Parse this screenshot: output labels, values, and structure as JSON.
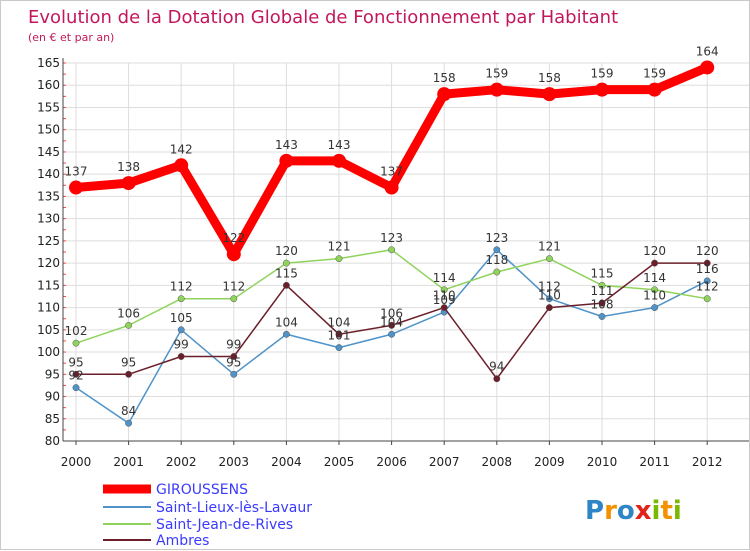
{
  "chart_data": {
    "type": "line",
    "title": "Evolution de la Dotation Globale de Fonctionnement par Habitant",
    "subtitle": "(en € et par an)",
    "xlabel": "",
    "ylabel": "",
    "categories": [
      "2000",
      "2001",
      "2002",
      "2003",
      "2004",
      "2005",
      "2006",
      "2007",
      "2008",
      "2009",
      "2010",
      "2011",
      "2012"
    ],
    "ylim": [
      80,
      165
    ],
    "yticks": [
      80,
      85,
      90,
      95,
      100,
      105,
      110,
      115,
      120,
      125,
      130,
      135,
      140,
      145,
      150,
      155,
      160,
      165
    ],
    "grid": true,
    "legend_position": "bottom-left",
    "series": [
      {
        "name": "GIROUSSENS",
        "color": "#ff0000",
        "values": [
          137,
          138,
          142,
          122,
          143,
          143,
          137,
          158,
          159,
          158,
          159,
          159,
          164
        ]
      },
      {
        "name": "Saint-Lieux-lès-Lavaur",
        "color": "#4f93c9",
        "values": [
          92,
          84,
          105,
          95,
          104,
          101,
          104,
          109,
          123,
          112,
          108,
          110,
          116
        ]
      },
      {
        "name": "Saint-Jean-de-Rives",
        "color": "#8fd35c",
        "values": [
          102,
          106,
          112,
          112,
          120,
          121,
          123,
          114,
          118,
          121,
          115,
          114,
          112
        ]
      },
      {
        "name": "Ambres",
        "color": "#6b1f2a",
        "values": [
          95,
          95,
          99,
          99,
          115,
          104,
          106,
          110,
          94,
          110,
          111,
          120,
          120
        ]
      }
    ],
    "data_labels": [
      {
        "series": 0,
        "values": [
          "137",
          "138",
          "142",
          "122",
          "143",
          "143",
          "137",
          "158",
          "159",
          "158",
          "159",
          "159",
          "164"
        ]
      },
      {
        "series": 1,
        "values": [
          "92",
          "84",
          "105",
          "95",
          "104",
          "101",
          "104",
          "109",
          "123",
          "112",
          "108",
          "110",
          "116"
        ]
      },
      {
        "series": 2,
        "values": [
          "102",
          "106",
          "112",
          "112",
          "120",
          "121",
          "123",
          "114",
          "118",
          "121",
          "115",
          "114",
          "112"
        ]
      },
      {
        "series": 3,
        "values": [
          "95",
          "95",
          "99",
          "99",
          "115",
          "104",
          "106",
          "110",
          "94",
          "110",
          "111",
          "120",
          "120"
        ]
      }
    ]
  },
  "logo": {
    "text": "Proxiti",
    "letters": [
      "P",
      "r",
      "o",
      "x",
      "i",
      "t",
      "i"
    ],
    "colors": [
      "#2f86c6",
      "#f39200",
      "#2f86c6",
      "#e2231a",
      "#7ab800",
      "#f39200",
      "#7ab800"
    ]
  }
}
